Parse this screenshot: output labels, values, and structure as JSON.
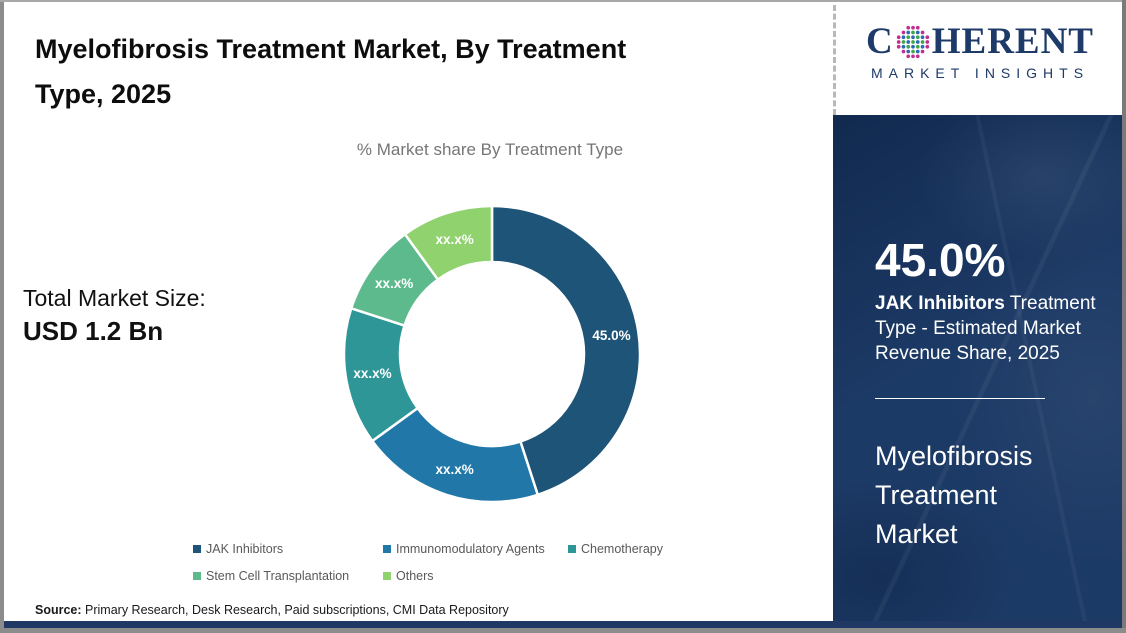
{
  "header": {
    "title_line1": "Myelofibrosis Treatment Market, By Treatment",
    "title_line2": "Type, 2025"
  },
  "logo": {
    "brand_prefix": "C",
    "brand_suffix": "HERENT",
    "brand_sub": "MARKET INSIGHTS",
    "navy": "#1E3A68",
    "globe_magenta": "#C22E90",
    "globe_blue": "#2B6CB0",
    "globe_green": "#3FA649"
  },
  "market_size": {
    "label": "Total Market Size:",
    "value": "USD 1.2 Bn"
  },
  "chart_data": {
    "type": "pie",
    "donut": true,
    "title": "% Market share By Treatment Type",
    "categories": [
      "JAK Inhibitors",
      "Immunomodulatory Agents",
      "Chemotherapy",
      "Stem Cell Transplantation",
      "Others"
    ],
    "values": [
      45.0,
      20.0,
      15.0,
      10.0,
      10.0
    ],
    "values_note": "Only the 45.0% JAK Inhibitors share is shown; other slice values are masked as xx.x% and estimated from arc angles",
    "labels": [
      "45.0%",
      "xx.x%",
      "xx.x%",
      "xx.x%",
      "xx.x%"
    ],
    "colors": [
      "#1E5477",
      "#2178A8",
      "#2F9697",
      "#5DBA8C",
      "#8FD26E"
    ],
    "start_angle_deg": 0,
    "direction": "clockwise",
    "legend_position": "bottom"
  },
  "stats_panel": {
    "big_value": "45.0%",
    "label_bold": "JAK Inhibitors",
    "label_rest": "Treatment Type - Estimated Market Revenue Share, 2025",
    "product_line1": "Myelofibrosis",
    "product_line2": "Treatment",
    "product_line3": "Market",
    "background": "#1C3A66"
  },
  "source": {
    "label": "Source:",
    "text": "Primary Research, Desk Research, Paid subscriptions, CMI Data Repository"
  }
}
